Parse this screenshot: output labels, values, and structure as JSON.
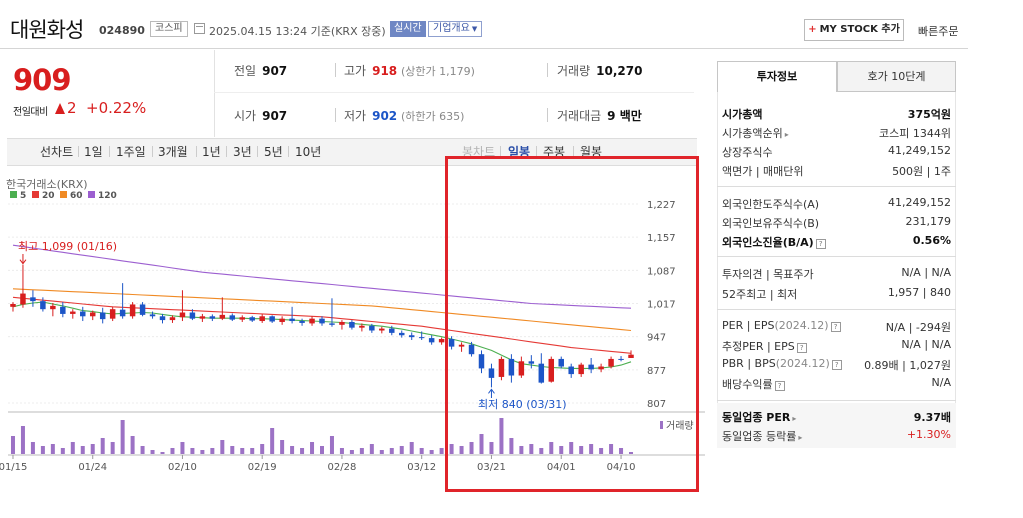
{
  "header": {
    "company": "대원화성",
    "code": "024890",
    "market": "코스피",
    "datetime": "2025.04.15 13:24 기준(KRX 장중)",
    "realtime": "실시간",
    "corp_info": "기업개요",
    "mystock_plus": "+",
    "mystock": "MY STOCK 추가",
    "quick_order": "빠른주문"
  },
  "quote": {
    "price": "909",
    "change_label": "전일대비",
    "change": "2",
    "change_pct": "+0.22%",
    "prev_label": "전일",
    "prev": "907",
    "high_label": "고가",
    "high": "918",
    "upper_limit": "(상한가 1,179)",
    "volume_label": "거래량",
    "volume": "10,270",
    "open_label": "시가",
    "open": "907",
    "low_label": "저가",
    "low": "902",
    "lower_limit": "(하한가 635)",
    "amount_label": "거래대금",
    "amount": "9 백만"
  },
  "period_tabs": [
    "선차트",
    "1일",
    "1주일",
    "3개월",
    "1년",
    "3년",
    "5년",
    "10년"
  ],
  "candle_tabs": [
    "봉차트",
    "일봉",
    "주봉",
    "월봉"
  ],
  "colors": {
    "up": "#d81e1e",
    "down": "#1c55c7",
    "ma5": "#4caf50",
    "ma20": "#e53935",
    "ma60": "#f08a24",
    "ma120": "#9c5fd0",
    "volume": "#9c72c5",
    "highlight_box": "#e0242a"
  },
  "chart_data": {
    "type": "candlestick",
    "title": "한국거래소(KRX)",
    "legend": [
      {
        "name": "5",
        "color": "#4caf50"
      },
      {
        "name": "20",
        "color": "#e53935"
      },
      {
        "name": "60",
        "color": "#f08a24"
      },
      {
        "name": "120",
        "color": "#9c5fd0"
      }
    ],
    "y_ticks": [
      1227,
      1157,
      1087,
      1017,
      947,
      877,
      807
    ],
    "ylim": [
      790,
      1240
    ],
    "x_ticks": [
      "01/15",
      "01/24",
      "02/10",
      "02/19",
      "02/28",
      "03/12",
      "03/21",
      "04/01",
      "04/10"
    ],
    "annotation_high": "최고 1,099 (01/16)",
    "annotation_low": "최저 840 (03/31)",
    "volume_label": "거래량",
    "candles": [
      {
        "o": 1010,
        "h": 1020,
        "l": 1000,
        "c": 1016
      },
      {
        "o": 1015,
        "h": 1099,
        "l": 1008,
        "c": 1038
      },
      {
        "o": 1030,
        "h": 1045,
        "l": 1010,
        "c": 1022
      },
      {
        "o": 1022,
        "h": 1030,
        "l": 1000,
        "c": 1005
      },
      {
        "o": 1005,
        "h": 1018,
        "l": 990,
        "c": 1012
      },
      {
        "o": 1010,
        "h": 1020,
        "l": 988,
        "c": 995
      },
      {
        "o": 995,
        "h": 1005,
        "l": 985,
        "c": 1000
      },
      {
        "o": 1000,
        "h": 1010,
        "l": 980,
        "c": 990
      },
      {
        "o": 990,
        "h": 1002,
        "l": 982,
        "c": 998
      },
      {
        "o": 998,
        "h": 1008,
        "l": 975,
        "c": 984
      },
      {
        "o": 985,
        "h": 1010,
        "l": 980,
        "c": 1005
      },
      {
        "o": 1004,
        "h": 1060,
        "l": 985,
        "c": 990
      },
      {
        "o": 990,
        "h": 1020,
        "l": 985,
        "c": 1015
      },
      {
        "o": 1015,
        "h": 1020,
        "l": 990,
        "c": 993
      },
      {
        "o": 994,
        "h": 1000,
        "l": 985,
        "c": 990
      },
      {
        "o": 990,
        "h": 995,
        "l": 975,
        "c": 982
      },
      {
        "o": 982,
        "h": 992,
        "l": 976,
        "c": 988
      },
      {
        "o": 988,
        "h": 1045,
        "l": 980,
        "c": 998
      },
      {
        "o": 998,
        "h": 1005,
        "l": 982,
        "c": 985
      },
      {
        "o": 985,
        "h": 995,
        "l": 978,
        "c": 990
      },
      {
        "o": 990,
        "h": 994,
        "l": 980,
        "c": 985
      },
      {
        "o": 985,
        "h": 1030,
        "l": 982,
        "c": 993
      },
      {
        "o": 992,
        "h": 996,
        "l": 980,
        "c": 983
      },
      {
        "o": 983,
        "h": 992,
        "l": 978,
        "c": 988
      },
      {
        "o": 988,
        "h": 991,
        "l": 978,
        "c": 981
      },
      {
        "o": 980,
        "h": 994,
        "l": 976,
        "c": 990
      },
      {
        "o": 990,
        "h": 992,
        "l": 976,
        "c": 979
      },
      {
        "o": 978,
        "h": 990,
        "l": 972,
        "c": 985
      },
      {
        "o": 985,
        "h": 1010,
        "l": 975,
        "c": 980
      },
      {
        "o": 980,
        "h": 985,
        "l": 970,
        "c": 976
      },
      {
        "o": 975,
        "h": 990,
        "l": 970,
        "c": 985
      },
      {
        "o": 985,
        "h": 990,
        "l": 970,
        "c": 975
      },
      {
        "o": 975,
        "h": 1028,
        "l": 968,
        "c": 972
      },
      {
        "o": 972,
        "h": 982,
        "l": 962,
        "c": 978
      },
      {
        "o": 978,
        "h": 982,
        "l": 962,
        "c": 966
      },
      {
        "o": 966,
        "h": 975,
        "l": 958,
        "c": 970
      },
      {
        "o": 970,
        "h": 974,
        "l": 955,
        "c": 960
      },
      {
        "o": 960,
        "h": 968,
        "l": 954,
        "c": 964
      },
      {
        "o": 964,
        "h": 970,
        "l": 950,
        "c": 955
      },
      {
        "o": 955,
        "h": 960,
        "l": 945,
        "c": 950
      },
      {
        "o": 950,
        "h": 956,
        "l": 940,
        "c": 946
      },
      {
        "o": 946,
        "h": 958,
        "l": 940,
        "c": 944
      },
      {
        "o": 944,
        "h": 950,
        "l": 930,
        "c": 935
      },
      {
        "o": 935,
        "h": 945,
        "l": 930,
        "c": 942
      },
      {
        "o": 942,
        "h": 948,
        "l": 920,
        "c": 926
      },
      {
        "o": 926,
        "h": 935,
        "l": 915,
        "c": 930
      },
      {
        "o": 930,
        "h": 936,
        "l": 905,
        "c": 910
      },
      {
        "o": 910,
        "h": 918,
        "l": 870,
        "c": 880
      },
      {
        "o": 880,
        "h": 890,
        "l": 840,
        "c": 860
      },
      {
        "o": 862,
        "h": 905,
        "l": 855,
        "c": 900
      },
      {
        "o": 900,
        "h": 910,
        "l": 850,
        "c": 865
      },
      {
        "o": 865,
        "h": 905,
        "l": 860,
        "c": 895
      },
      {
        "o": 895,
        "h": 908,
        "l": 880,
        "c": 890
      },
      {
        "o": 890,
        "h": 912,
        "l": 848,
        "c": 850
      },
      {
        "o": 852,
        "h": 905,
        "l": 850,
        "c": 900
      },
      {
        "o": 900,
        "h": 905,
        "l": 880,
        "c": 884
      },
      {
        "o": 884,
        "h": 890,
        "l": 860,
        "c": 868
      },
      {
        "o": 868,
        "h": 892,
        "l": 862,
        "c": 888
      },
      {
        "o": 888,
        "h": 902,
        "l": 870,
        "c": 878
      },
      {
        "o": 878,
        "h": 890,
        "l": 872,
        "c": 884
      },
      {
        "o": 884,
        "h": 905,
        "l": 880,
        "c": 900
      },
      {
        "o": 900,
        "h": 906,
        "l": 895,
        "c": 899
      },
      {
        "o": 902,
        "h": 918,
        "l": 902,
        "c": 909
      }
    ],
    "ma5": [
      1010,
      1015,
      1018,
      1020,
      1016,
      1012,
      1007,
      1002,
      1000,
      997,
      995,
      996,
      997,
      998,
      997,
      994,
      991,
      989,
      988,
      987,
      986,
      986,
      986,
      986,
      985,
      985,
      984,
      983,
      982,
      981,
      980,
      979,
      978,
      977,
      975,
      973,
      971,
      969,
      966,
      963,
      959,
      955,
      951,
      947,
      942,
      937,
      932,
      925,
      918,
      908,
      898,
      890,
      887,
      884,
      882,
      881,
      880,
      880,
      880,
      881,
      883,
      887,
      894
    ],
    "ma20": [
      1030,
      1028,
      1026,
      1024,
      1022,
      1020,
      1018,
      1016,
      1014,
      1012,
      1010,
      1009,
      1008,
      1007,
      1006,
      1005,
      1004,
      1003,
      1002,
      1001,
      1000,
      999,
      998,
      997,
      996,
      995,
      994,
      993,
      992,
      991,
      990,
      989,
      987,
      985,
      983,
      981,
      979,
      977,
      975,
      973,
      971,
      969,
      966,
      963,
      960,
      957,
      954,
      951,
      948,
      945,
      942,
      939,
      936,
      933,
      930,
      927,
      924,
      922,
      920,
      918,
      916,
      914,
      912
    ],
    "ma60": [
      1048,
      1047,
      1046,
      1045,
      1044,
      1043,
      1042,
      1041,
      1040,
      1039,
      1038,
      1037,
      1036,
      1035,
      1034,
      1033,
      1032,
      1031,
      1030,
      1029,
      1028,
      1027,
      1026,
      1025,
      1024,
      1023,
      1022,
      1021,
      1020,
      1019,
      1018,
      1017,
      1016,
      1015,
      1014,
      1013,
      1012,
      1010,
      1008,
      1006,
      1004,
      1002,
      1000,
      998,
      996,
      994,
      992,
      990,
      988,
      986,
      984,
      982,
      980,
      978,
      976,
      974,
      972,
      970,
      968,
      966,
      964,
      962,
      960
    ],
    "ma120": [
      1140,
      1137,
      1134,
      1131,
      1128,
      1125,
      1122,
      1119,
      1116,
      1113,
      1110,
      1107,
      1104,
      1101,
      1098,
      1095,
      1092,
      1089,
      1086,
      1083,
      1081,
      1079,
      1077,
      1075,
      1073,
      1071,
      1069,
      1067,
      1065,
      1063,
      1061,
      1059,
      1057,
      1055,
      1053,
      1051,
      1049,
      1047,
      1045,
      1043,
      1041,
      1039,
      1037,
      1035,
      1033,
      1031,
      1029,
      1027,
      1025,
      1023,
      1021,
      1019,
      1017,
      1016,
      1015,
      1014,
      1013,
      1012,
      1011,
      1010,
      1009,
      1008,
      1007
    ],
    "volumes": [
      9,
      14,
      6,
      4,
      5,
      3,
      6,
      4,
      5,
      8,
      6,
      17,
      9,
      4,
      2,
      1,
      3,
      6,
      3,
      2,
      3,
      7,
      4,
      3,
      3,
      5,
      13,
      7,
      4,
      3,
      6,
      4,
      9,
      3,
      2,
      3,
      5,
      2,
      3,
      4,
      6,
      3,
      2,
      3,
      5,
      4,
      6,
      10,
      6,
      18,
      8,
      4,
      5,
      3,
      6,
      4,
      6,
      4,
      5,
      3,
      5,
      3,
      1
    ]
  },
  "right_panel": {
    "tab_invest": "투자정보",
    "tab_hoga": "호가 10단계",
    "market_cap_label": "시가총액",
    "market_cap": "375억원",
    "cap_rank_label": "시가총액순위",
    "cap_rank": "코스피 1344위",
    "shares_label": "상장주식수",
    "shares": "41,249,152",
    "par_label": "액면가 | 매매단위",
    "par": "500원 | 1주",
    "foreign_limit_label": "외국인한도주식수(A)",
    "foreign_limit": "41,249,152",
    "foreign_hold_label": "외국인보유주식수(B)",
    "foreign_hold": "231,179",
    "foreign_ratio_label": "외국인소진율(B/A)",
    "foreign_ratio": "0.56%",
    "opinion_label": "투자의견 | 목표주가",
    "opinion": "N/A | N/A",
    "week52_label": "52주최고 | 최저",
    "week52": "1,957 | 840",
    "per_label": "PER | EPS",
    "per_period": "(2024.12)",
    "per": "N/A | -294원",
    "est_label": "추정PER | EPS",
    "est": "N/A | N/A",
    "pbr_label": "PBR | BPS",
    "pbr_period": "(2024.12)",
    "pbr": "0.89배 | 1,027원",
    "div_label": "배당수익률",
    "div": "N/A",
    "ind_per_label": "동일업종 PER",
    "ind_per": "9.37배",
    "ind_rate_label": "동일업종 등락률",
    "ind_rate": "+1.30%"
  }
}
